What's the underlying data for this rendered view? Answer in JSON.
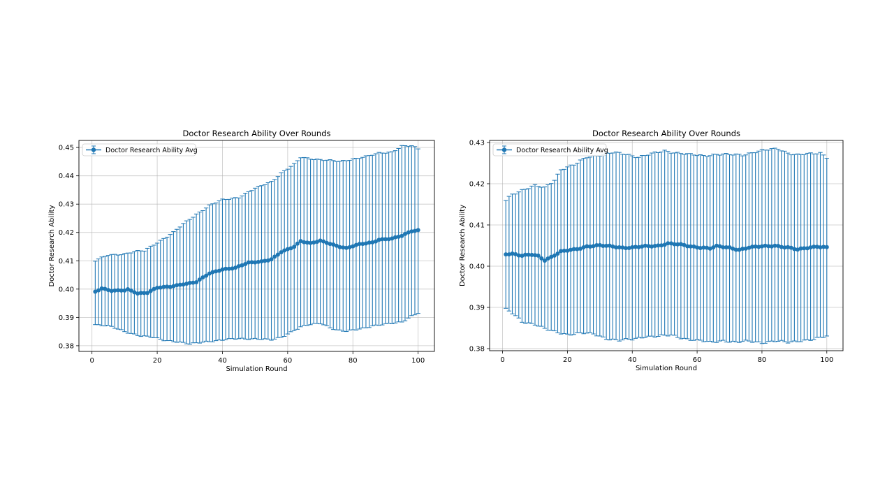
{
  "chart_data": [
    {
      "type": "line",
      "title": "Doctor Research Ability Over Rounds",
      "xlabel": "Simulation Round",
      "ylabel": "Doctor Research Ability",
      "xlim": [
        -4,
        105
      ],
      "ylim": [
        0.378,
        0.4525
      ],
      "xticks": [
        0,
        20,
        40,
        60,
        80,
        100
      ],
      "xtick_labels": [
        "0",
        "20",
        "40",
        "60",
        "80",
        "100"
      ],
      "yticks": [
        0.38,
        0.39,
        0.4,
        0.41,
        0.42,
        0.43,
        0.44,
        0.45
      ],
      "ytick_labels": [
        "0.38",
        "0.39",
        "0.40",
        "0.41",
        "0.42",
        "0.43",
        "0.44",
        "0.45"
      ],
      "grid": true,
      "legend_position": "top-left",
      "series": [
        {
          "name": "Doctor Research Ability Avg",
          "color": "#1f77b4",
          "error_bars": true,
          "mean_keypoints": [
            [
              1,
              0.399
            ],
            [
              3,
              0.4003
            ],
            [
              6,
              0.3995
            ],
            [
              10,
              0.3995
            ],
            [
              11,
              0.3998
            ],
            [
              14,
              0.3985
            ],
            [
              17,
              0.3988
            ],
            [
              20,
              0.4005
            ],
            [
              24,
              0.4008
            ],
            [
              28,
              0.4018
            ],
            [
              32,
              0.4025
            ],
            [
              36,
              0.4055
            ],
            [
              40,
              0.407
            ],
            [
              44,
              0.4075
            ],
            [
              48,
              0.4093
            ],
            [
              52,
              0.4098
            ],
            [
              55,
              0.4105
            ],
            [
              58,
              0.413
            ],
            [
              62,
              0.415
            ],
            [
              64,
              0.417
            ],
            [
              67,
              0.4162
            ],
            [
              70,
              0.417
            ],
            [
              73,
              0.416
            ],
            [
              76,
              0.415
            ],
            [
              78,
              0.4145
            ],
            [
              82,
              0.4158
            ],
            [
              86,
              0.4165
            ],
            [
              88,
              0.4175
            ],
            [
              92,
              0.4178
            ],
            [
              95,
              0.4188
            ],
            [
              98,
              0.4205
            ],
            [
              100,
              0.4208
            ]
          ],
          "upper_keypoints": [
            [
              1,
              0.41
            ],
            [
              5,
              0.412
            ],
            [
              10,
              0.4125
            ],
            [
              13,
              0.4132
            ],
            [
              16,
              0.4135
            ],
            [
              20,
              0.4165
            ],
            [
              25,
              0.42
            ],
            [
              28,
              0.423
            ],
            [
              32,
              0.4265
            ],
            [
              36,
              0.4295
            ],
            [
              40,
              0.4315
            ],
            [
              45,
              0.4325
            ],
            [
              50,
              0.4355
            ],
            [
              55,
              0.438
            ],
            [
              58,
              0.441
            ],
            [
              62,
              0.444
            ],
            [
              64,
              0.4465
            ],
            [
              68,
              0.446
            ],
            [
              72,
              0.4455
            ],
            [
              76,
              0.445
            ],
            [
              80,
              0.446
            ],
            [
              85,
              0.447
            ],
            [
              88,
              0.448
            ],
            [
              92,
              0.4485
            ],
            [
              95,
              0.4505
            ],
            [
              98,
              0.4505
            ],
            [
              100,
              0.4495
            ]
          ],
          "lower_keypoints": [
            [
              1,
              0.3875
            ],
            [
              5,
              0.387
            ],
            [
              10,
              0.385
            ],
            [
              15,
              0.3835
            ],
            [
              18,
              0.383
            ],
            [
              22,
              0.382
            ],
            [
              26,
              0.3815
            ],
            [
              30,
              0.3805
            ],
            [
              35,
              0.3815
            ],
            [
              40,
              0.382
            ],
            [
              45,
              0.3825
            ],
            [
              50,
              0.3825
            ],
            [
              55,
              0.382
            ],
            [
              58,
              0.383
            ],
            [
              62,
              0.3855
            ],
            [
              65,
              0.387
            ],
            [
              70,
              0.388
            ],
            [
              75,
              0.3855
            ],
            [
              78,
              0.385
            ],
            [
              82,
              0.386
            ],
            [
              86,
              0.387
            ],
            [
              90,
              0.3875
            ],
            [
              95,
              0.3885
            ],
            [
              98,
              0.3905
            ],
            [
              100,
              0.3915
            ]
          ]
        }
      ]
    },
    {
      "type": "line",
      "title": "Doctor Research Ability Over Rounds",
      "xlabel": "Simulation Round",
      "ylabel": "Doctor Research Ability",
      "xlim": [
        -4,
        105
      ],
      "ylim": [
        0.3795,
        0.4305
      ],
      "xticks": [
        0,
        20,
        40,
        60,
        80,
        100
      ],
      "xtick_labels": [
        "0",
        "20",
        "40",
        "60",
        "80",
        "100"
      ],
      "yticks": [
        0.38,
        0.39,
        0.4,
        0.41,
        0.42,
        0.43
      ],
      "ytick_labels": [
        "0.38",
        "0.39",
        "0.40",
        "0.41",
        "0.42",
        "0.43"
      ],
      "grid": true,
      "legend_position": "top-left",
      "series": [
        {
          "name": "Doctor Research Ability Avg",
          "color": "#1f77b4",
          "error_bars": true,
          "mean_keypoints": [
            [
              1,
              0.403
            ],
            [
              3,
              0.403
            ],
            [
              6,
              0.4025
            ],
            [
              9,
              0.4028
            ],
            [
              11,
              0.4025
            ],
            [
              13,
              0.4015
            ],
            [
              15,
              0.4022
            ],
            [
              18,
              0.4035
            ],
            [
              20,
              0.4038
            ],
            [
              23,
              0.4042
            ],
            [
              26,
              0.4048
            ],
            [
              30,
              0.405
            ],
            [
              34,
              0.4048
            ],
            [
              37,
              0.4045
            ],
            [
              40,
              0.4045
            ],
            [
              44,
              0.4048
            ],
            [
              48,
              0.405
            ],
            [
              51,
              0.4055
            ],
            [
              55,
              0.4052
            ],
            [
              58,
              0.4048
            ],
            [
              62,
              0.4045
            ],
            [
              64,
              0.4043
            ],
            [
              66,
              0.4048
            ],
            [
              70,
              0.4045
            ],
            [
              73,
              0.404
            ],
            [
              76,
              0.4045
            ],
            [
              80,
              0.4048
            ],
            [
              84,
              0.405
            ],
            [
              88,
              0.4045
            ],
            [
              91,
              0.404
            ],
            [
              94,
              0.4045
            ],
            [
              97,
              0.4048
            ],
            [
              100,
              0.4045
            ]
          ],
          "upper_keypoints": [
            [
              1,
              0.416
            ],
            [
              3,
              0.4175
            ],
            [
              6,
              0.4185
            ],
            [
              10,
              0.4195
            ],
            [
              13,
              0.419
            ],
            [
              16,
              0.421
            ],
            [
              18,
              0.4235
            ],
            [
              22,
              0.4245
            ],
            [
              26,
              0.4265
            ],
            [
              30,
              0.427
            ],
            [
              34,
              0.4275
            ],
            [
              38,
              0.4272
            ],
            [
              42,
              0.4265
            ],
            [
              46,
              0.4272
            ],
            [
              50,
              0.428
            ],
            [
              54,
              0.4275
            ],
            [
              58,
              0.427
            ],
            [
              62,
              0.4268
            ],
            [
              66,
              0.4272
            ],
            [
              70,
              0.427
            ],
            [
              74,
              0.427
            ],
            [
              78,
              0.4278
            ],
            [
              82,
              0.4282
            ],
            [
              85,
              0.4285
            ],
            [
              88,
              0.4275
            ],
            [
              91,
              0.427
            ],
            [
              95,
              0.4272
            ],
            [
              98,
              0.4275
            ],
            [
              100,
              0.4265
            ]
          ],
          "lower_keypoints": [
            [
              1,
              0.3895
            ],
            [
              3,
              0.3885
            ],
            [
              6,
              0.3865
            ],
            [
              10,
              0.386
            ],
            [
              13,
              0.3848
            ],
            [
              16,
              0.384
            ],
            [
              20,
              0.3835
            ],
            [
              24,
              0.3838
            ],
            [
              28,
              0.3835
            ],
            [
              32,
              0.3825
            ],
            [
              36,
              0.382
            ],
            [
              40,
              0.3822
            ],
            [
              44,
              0.383
            ],
            [
              48,
              0.383
            ],
            [
              52,
              0.3832
            ],
            [
              56,
              0.3825
            ],
            [
              60,
              0.382
            ],
            [
              64,
              0.3815
            ],
            [
              68,
              0.382
            ],
            [
              72,
              0.3815
            ],
            [
              76,
              0.3818
            ],
            [
              80,
              0.3815
            ],
            [
              84,
              0.3818
            ],
            [
              88,
              0.3815
            ],
            [
              92,
              0.382
            ],
            [
              96,
              0.3822
            ],
            [
              100,
              0.383
            ]
          ]
        }
      ]
    }
  ]
}
